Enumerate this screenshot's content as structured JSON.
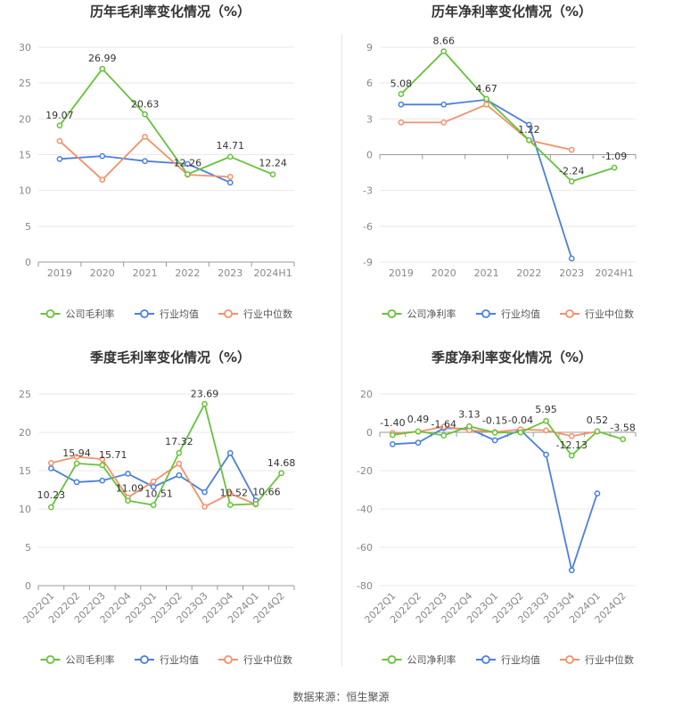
{
  "source_label": "数据来源：恒生聚源",
  "colors": {
    "company": "#67c23a",
    "avg": "#4a7fe0",
    "median": "#f4916a"
  },
  "chart_data": [
    {
      "type": "line",
      "title": "历年毛利率变化情况（%）",
      "categories": [
        "2019",
        "2020",
        "2021",
        "2022",
        "2023",
        "2024H1"
      ],
      "ylim": [
        0,
        30
      ],
      "yticks": [
        0,
        5,
        10,
        15,
        20,
        25,
        30
      ],
      "grid": true,
      "legend": "bottom",
      "series": [
        {
          "name": "公司毛利率",
          "key": "company",
          "values": [
            19.07,
            26.99,
            20.63,
            12.26,
            14.71,
            12.24
          ],
          "labels": [
            "19.07",
            "26.99",
            "20.63",
            "12.26",
            "14.71",
            "12.24"
          ]
        },
        {
          "name": "行业均值",
          "key": "avg",
          "values": [
            14.4,
            14.8,
            14.1,
            13.7,
            11.1,
            null
          ]
        },
        {
          "name": "行业中位数",
          "key": "median",
          "values": [
            16.9,
            11.5,
            17.5,
            12.2,
            11.9,
            null
          ]
        }
      ]
    },
    {
      "type": "line",
      "title": "历年净利率变化情况（%）",
      "categories": [
        "2019",
        "2020",
        "2021",
        "2022",
        "2023",
        "2024H1"
      ],
      "ylim": [
        -9,
        9
      ],
      "yticks": [
        -9,
        -6,
        -3,
        0,
        3,
        6,
        9
      ],
      "grid": true,
      "legend": "bottom",
      "series": [
        {
          "name": "公司净利率",
          "key": "company",
          "values": [
            5.08,
            8.66,
            4.67,
            1.22,
            -2.24,
            -1.09
          ],
          "labels": [
            "5.08",
            "8.66",
            "4.67",
            "1.22",
            "-2.24",
            "-1.09"
          ]
        },
        {
          "name": "行业均值",
          "key": "avg",
          "values": [
            4.2,
            4.2,
            4.6,
            2.5,
            -8.7,
            null
          ]
        },
        {
          "name": "行业中位数",
          "key": "median",
          "values": [
            2.7,
            2.7,
            4.2,
            1.2,
            0.4,
            null
          ]
        }
      ]
    },
    {
      "type": "line",
      "title": "季度毛利率变化情况（%）",
      "categories": [
        "2022Q1",
        "2022Q2",
        "2022Q3",
        "2022Q4",
        "2023Q1",
        "2023Q2",
        "2023Q3",
        "2023Q4",
        "2024Q1",
        "2024Q2"
      ],
      "ylim": [
        0,
        25
      ],
      "yticks": [
        0,
        5,
        10,
        15,
        20,
        25
      ],
      "grid": true,
      "legend": "bottom",
      "series": [
        {
          "name": "公司毛利率",
          "key": "company",
          "values": [
            10.23,
            15.94,
            15.71,
            11.09,
            10.51,
            17.32,
            23.69,
            10.52,
            10.66,
            14.68
          ],
          "labels": [
            "10.23",
            "15.94",
            "15.71",
            "11.09",
            "10.51",
            "17.32",
            "23.69",
            "10.52",
            "10.66",
            "14.68"
          ]
        },
        {
          "name": "行业均值",
          "key": "avg",
          "values": [
            15.3,
            13.5,
            13.7,
            14.6,
            12.9,
            14.4,
            12.2,
            17.3,
            11.1,
            null
          ]
        },
        {
          "name": "行业中位数",
          "key": "median",
          "values": [
            16.0,
            16.8,
            16.5,
            11.5,
            13.6,
            15.9,
            10.3,
            12.0,
            10.6,
            null
          ]
        }
      ]
    },
    {
      "type": "line",
      "title": "季度净利率变化情况（%）",
      "categories": [
        "2022Q1",
        "2022Q2",
        "2022Q3",
        "2022Q4",
        "2023Q1",
        "2023Q2",
        "2023Q3",
        "2023Q4",
        "2024Q1",
        "2024Q2"
      ],
      "ylim": [
        -80,
        20
      ],
      "yticks": [
        -80,
        -60,
        -40,
        -20,
        0,
        20
      ],
      "grid": true,
      "legend": "bottom",
      "series": [
        {
          "name": "公司净利率",
          "key": "company",
          "values": [
            -1.4,
            0.49,
            -1.64,
            3.13,
            -0.15,
            -0.04,
            5.95,
            -12.13,
            0.52,
            -3.58
          ],
          "labels": [
            "-1.40",
            "0.49",
            "-1.64",
            "3.13",
            "-0.15",
            "-0.04",
            "5.95",
            "-12.13",
            "0.52",
            "-3.58"
          ]
        },
        {
          "name": "行业均值",
          "key": "avg",
          "values": [
            -6.2,
            -5.4,
            2.2,
            1.8,
            -4.2,
            1.2,
            -11.6,
            -72.0,
            -31.9,
            null
          ]
        },
        {
          "name": "行业中位数",
          "key": "median",
          "values": [
            -0.4,
            0.3,
            2.9,
            1.1,
            0.1,
            1.6,
            1.0,
            -2.0,
            0.4,
            null
          ]
        }
      ]
    }
  ]
}
